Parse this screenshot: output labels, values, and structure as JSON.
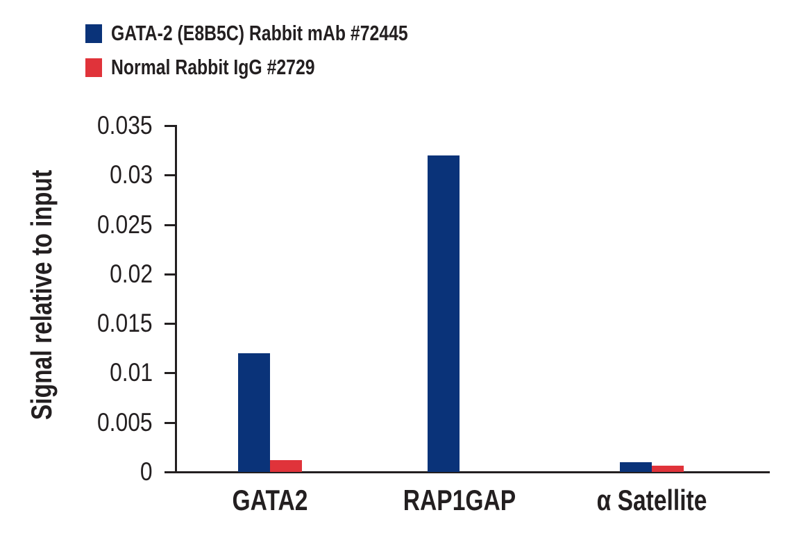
{
  "chart_data": {
    "type": "bar",
    "title": "",
    "xlabel": "",
    "ylabel": "Signal relative to input",
    "categories": [
      "GATA2",
      "RAP1GAP",
      "α Satellite"
    ],
    "series": [
      {
        "name": "GATA-2 (E8B5C) Rabbit mAb #72445",
        "color": "#0a3379",
        "values": [
          0.012,
          0.032,
          0.001
        ]
      },
      {
        "name": "Normal Rabbit IgG #2729",
        "color": "#e0333a",
        "values": [
          0.0012,
          0.0,
          0.0006
        ]
      }
    ],
    "ylim": [
      0,
      0.035
    ],
    "yticks": [
      "0",
      "0.005",
      "0.01",
      "0.015",
      "0.02",
      "0.025",
      "0.03",
      "0.035"
    ],
    "grid": false,
    "legend_position": "top-left"
  },
  "legend": {
    "items": [
      {
        "label": "GATA-2 (E8B5C) Rabbit mAb #72445",
        "color": "#0a3379"
      },
      {
        "label": "Normal Rabbit IgG #2729",
        "color": "#e0333a"
      }
    ]
  },
  "axes": {
    "ylabel": "Signal relative to input",
    "yticks": [
      "0",
      "0.005",
      "0.01",
      "0.015",
      "0.02",
      "0.025",
      "0.03",
      "0.035"
    ],
    "categories": [
      "GATA2",
      "RAP1GAP",
      "α Satellite"
    ]
  }
}
